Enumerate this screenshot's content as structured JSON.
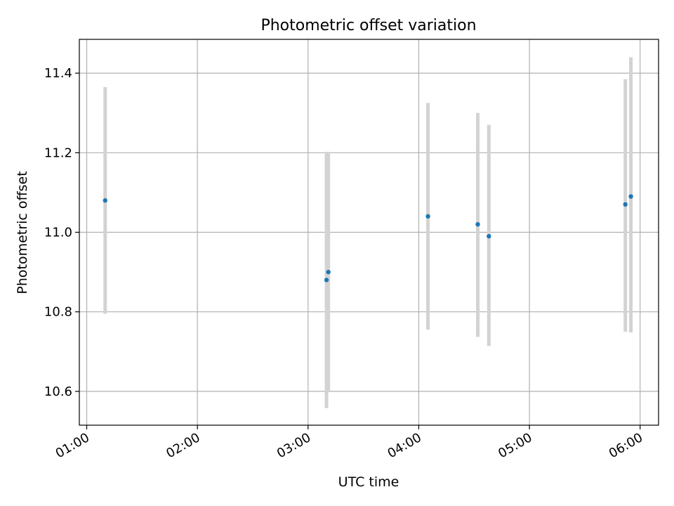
{
  "chart_data": {
    "type": "scatter",
    "title": "Photometric offset variation",
    "xlabel": "UTC time",
    "ylabel": "Photometric offset",
    "x_ticks": [
      "01:00",
      "02:00",
      "03:00",
      "04:00",
      "05:00",
      "06:00"
    ],
    "y_ticks": [
      "10.6",
      "10.8",
      "11.0",
      "11.2",
      "11.4"
    ],
    "xlim": [
      "00:56",
      "06:10"
    ],
    "ylim": [
      10.515,
      11.485
    ],
    "grid": true,
    "legend": "none",
    "points": [
      {
        "x": "01:10",
        "y": 11.08,
        "err_low": 10.795,
        "err_high": 11.365
      },
      {
        "x": "03:10",
        "y": 10.88,
        "err_low": 10.558,
        "err_high": 11.202
      },
      {
        "x": "03:11",
        "y": 10.9,
        "err_low": 10.598,
        "err_high": 11.202
      },
      {
        "x": "04:05",
        "y": 11.04,
        "err_low": 10.755,
        "err_high": 11.325
      },
      {
        "x": "04:32",
        "y": 11.02,
        "err_low": 10.737,
        "err_high": 11.3
      },
      {
        "x": "04:38",
        "y": 10.99,
        "err_low": 10.714,
        "err_high": 11.27
      },
      {
        "x": "05:52",
        "y": 11.07,
        "err_low": 10.75,
        "err_high": 11.385
      },
      {
        "x": "05:55",
        "y": 11.09,
        "err_low": 10.748,
        "err_high": 11.44
      }
    ],
    "colors": {
      "point": "#1f77b4",
      "errorbar": "#d3d3d3",
      "grid": "#b0b0b0",
      "axis": "#000000"
    }
  }
}
